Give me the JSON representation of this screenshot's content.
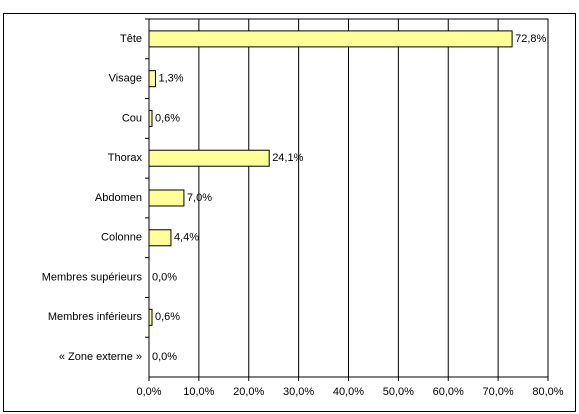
{
  "chart_data": {
    "type": "bar",
    "orientation": "horizontal",
    "categories": [
      "Tête",
      "Visage",
      "Cou",
      "Thorax",
      "Abdomen",
      "Colonne",
      "Membres supérieurs",
      "Membres inférieurs",
      "« Zone externe »"
    ],
    "values": [
      72.8,
      1.3,
      0.6,
      24.1,
      7.0,
      4.4,
      0.0,
      0.6,
      0.0
    ],
    "value_labels": [
      "72,8%",
      "1,3%",
      "0,6%",
      "24,1%",
      "7,0%",
      "4,4%",
      "0,0%",
      "0,6%",
      "0,0%"
    ],
    "color": "#ffff99",
    "xlim": [
      0,
      80
    ],
    "xticks": [
      {
        "value": 0,
        "label": "0,0%"
      },
      {
        "value": 10,
        "label": "10,0%"
      },
      {
        "value": 20,
        "label": "20,0%"
      },
      {
        "value": 30,
        "label": "30,0%"
      },
      {
        "value": 40,
        "label": "40,0%"
      },
      {
        "value": 50,
        "label": "50,0%"
      },
      {
        "value": 60,
        "label": "60,0%"
      },
      {
        "value": 70,
        "label": "70,0%"
      },
      {
        "value": 80,
        "label": "80,0%"
      }
    ],
    "grid": true
  }
}
